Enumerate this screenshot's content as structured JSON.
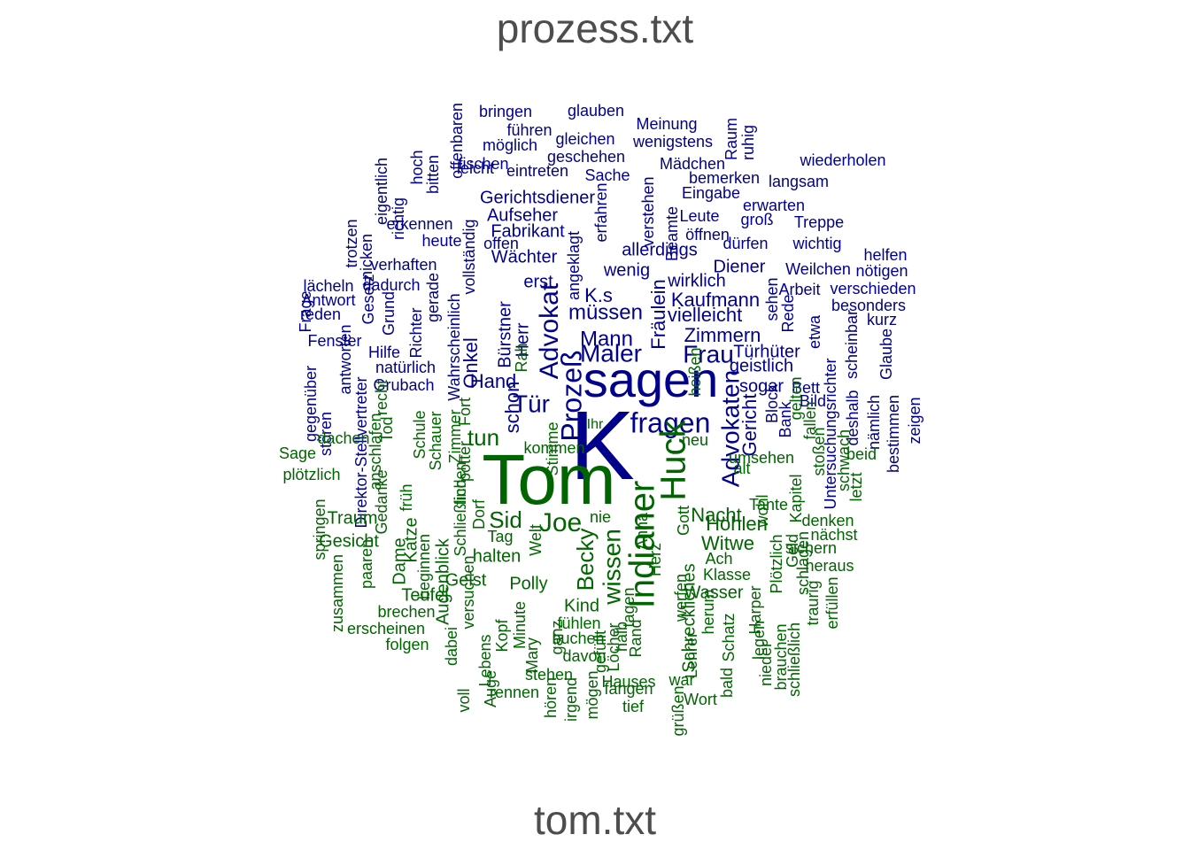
{
  "chart_data": {
    "type": "comparison-wordcloud",
    "groups": [
      {
        "name": "prozess.txt",
        "color": "#00008B"
      },
      {
        "name": "tom.txt",
        "color": "#006400"
      }
    ],
    "words": [
      [
        "K",
        0,
        100
      ],
      [
        "sagen",
        0,
        52
      ],
      [
        "fragen",
        0,
        30
      ],
      [
        "Prozeß",
        0,
        30
      ],
      [
        "Advokat",
        0,
        28
      ],
      [
        "Advokaten",
        0,
        26
      ],
      [
        "Maler",
        0,
        28
      ],
      [
        "müssen",
        0,
        24
      ],
      [
        "Frau",
        0,
        26
      ],
      [
        "Mann",
        0,
        24
      ],
      [
        "Tür",
        0,
        26
      ],
      [
        "K.s",
        0,
        22
      ],
      [
        "Kaufmann",
        0,
        22
      ],
      [
        "vielleicht",
        0,
        22
      ],
      [
        "Zimmern",
        0,
        20
      ],
      [
        "Türhüter",
        0,
        20
      ],
      [
        "Onkel",
        0,
        20
      ],
      [
        "Gericht",
        0,
        22
      ],
      [
        "Hand",
        0,
        20
      ],
      [
        "schon",
        0,
        22
      ],
      [
        "Herr",
        0,
        18
      ],
      [
        "Bürstner",
        0,
        18
      ],
      [
        "erst",
        0,
        18
      ],
      [
        "Fräulein",
        0,
        20
      ],
      [
        "Beamte",
        0,
        18
      ],
      [
        "allerdings",
        0,
        20
      ],
      [
        "Diener",
        0,
        18
      ],
      [
        "wenig",
        0,
        18
      ],
      [
        "wirklich",
        0,
        18
      ],
      [
        "Wächter",
        0,
        20
      ],
      [
        "Fabrikant",
        0,
        18
      ],
      [
        "Aufseher",
        0,
        18
      ],
      [
        "Gerichtsdiener",
        0,
        18
      ],
      [
        "geistlich",
        0,
        18
      ],
      [
        "sogar",
        0,
        18
      ],
      [
        "Bett",
        0,
        16
      ],
      [
        "Bild",
        0,
        16
      ],
      [
        "Block",
        0,
        16
      ],
      [
        "Bank",
        0,
        16
      ],
      [
        "natürlich",
        0,
        18
      ],
      [
        "Grubach",
        0,
        18
      ],
      [
        "Richter",
        0,
        16
      ],
      [
        "Hilfe",
        0,
        16
      ],
      [
        "Fenster",
        0,
        16
      ],
      [
        "Antwort",
        0,
        16
      ],
      [
        "Frage",
        0,
        16
      ],
      [
        "reden",
        0,
        16
      ],
      [
        "lächeln",
        0,
        16
      ],
      [
        "Grund",
        0,
        16
      ],
      [
        "Gesetz",
        0,
        16
      ],
      [
        "dadurch",
        0,
        16
      ],
      [
        "verhaften",
        0,
        16
      ],
      [
        "erkennen",
        0,
        16
      ],
      [
        "heute",
        0,
        16
      ],
      [
        "offen",
        0,
        16
      ],
      [
        "trotzen",
        0,
        16
      ],
      [
        "nicken",
        0,
        16
      ],
      [
        "eigentlich",
        0,
        16
      ],
      [
        "richtig",
        0,
        16
      ],
      [
        "hoch",
        0,
        16
      ],
      [
        "bitten",
        0,
        16
      ],
      [
        "offenbaren",
        0,
        16
      ],
      [
        "leicht",
        0,
        16
      ],
      [
        "eintreten",
        0,
        16
      ],
      [
        "fischen",
        0,
        16
      ],
      [
        "möglich",
        0,
        16
      ],
      [
        "gleichen",
        0,
        16
      ],
      [
        "geschehen",
        0,
        16
      ],
      [
        "führen",
        0,
        16
      ],
      [
        "bringen",
        0,
        16
      ],
      [
        "glauben",
        0,
        16
      ],
      [
        "Meinung",
        0,
        16
      ],
      [
        "wenigstens",
        0,
        16
      ],
      [
        "Mädchen",
        0,
        16
      ],
      [
        "Sache",
        0,
        16
      ],
      [
        "bemerken",
        0,
        16
      ],
      [
        "Eingabe",
        0,
        16
      ],
      [
        "Raum",
        0,
        16
      ],
      [
        "ruhig",
        0,
        16
      ],
      [
        "wiederholen",
        0,
        16
      ],
      [
        "langsam",
        0,
        16
      ],
      [
        "erwarten",
        0,
        16
      ],
      [
        "groß",
        0,
        16
      ],
      [
        "Treppe",
        0,
        16
      ],
      [
        "Leute",
        0,
        16
      ],
      [
        "öffnen",
        0,
        16
      ],
      [
        "dürfen",
        0,
        16
      ],
      [
        "wichtig",
        0,
        16
      ],
      [
        "helfen",
        0,
        16
      ],
      [
        "nötigen",
        0,
        16
      ],
      [
        "Weilchen",
        0,
        16
      ],
      [
        "Arbeit",
        0,
        16
      ],
      [
        "verschieden",
        0,
        16
      ],
      [
        "besonders",
        0,
        16
      ],
      [
        "kurz",
        0,
        16
      ],
      [
        "Rede",
        0,
        16
      ],
      [
        "etwa",
        0,
        16
      ],
      [
        "sehen",
        0,
        16
      ],
      [
        "erfahren",
        0,
        16
      ],
      [
        "verstehen",
        0,
        16
      ],
      [
        "Untersuchungsrichter",
        0,
        16
      ],
      [
        "scheinbar",
        0,
        16
      ],
      [
        "Glaube",
        0,
        16
      ],
      [
        "deshalb",
        0,
        16
      ],
      [
        "nämlich",
        0,
        16
      ],
      [
        "bestimmen",
        0,
        16
      ],
      [
        "zeigen",
        0,
        16
      ],
      [
        "Wahrscheinlich",
        0,
        16
      ],
      [
        "vollständig",
        0,
        16
      ],
      [
        "gegenüber",
        0,
        16
      ],
      [
        "antworten",
        0,
        16
      ],
      [
        "stören",
        0,
        16
      ],
      [
        "Direktor-Stellvertreter",
        0,
        16
      ],
      [
        "angeklagt",
        0,
        16
      ],
      [
        "gerade",
        0,
        16
      ],
      [
        "Tom",
        1,
        100
      ],
      [
        "Huck",
        1,
        42
      ],
      [
        "Indianer",
        1,
        38
      ],
      [
        "Joe",
        1,
        30
      ],
      [
        "Sid",
        1,
        26
      ],
      [
        "Becky",
        1,
        26
      ],
      [
        "wissen",
        1,
        28
      ],
      [
        "tun",
        1,
        24
      ],
      [
        "Nacht",
        1,
        20
      ],
      [
        "Höhlen",
        1,
        20
      ],
      [
        "Witwe",
        1,
        20
      ],
      [
        "Teufel",
        1,
        18
      ],
      [
        "Geist",
        1,
        18
      ],
      [
        "Polly",
        1,
        18
      ],
      [
        "Kind",
        1,
        18
      ],
      [
        "Wasser",
        1,
        18
      ],
      [
        "Schreckliches",
        1,
        18
      ],
      [
        "Lehrer",
        1,
        16
      ],
      [
        "halten",
        1,
        18
      ],
      [
        "Augenblick",
        1,
        18
      ],
      [
        "Katze",
        1,
        16
      ],
      [
        "Dame",
        1,
        16
      ],
      [
        "Traum",
        1,
        16
      ],
      [
        "Gesicht",
        1,
        16
      ],
      [
        "Sage",
        1,
        16
      ],
      [
        "plötzlich",
        1,
        16
      ],
      [
        "dachen",
        1,
        16
      ],
      [
        "anschlafen",
        1,
        16
      ],
      [
        "Gedanke",
        1,
        16
      ],
      [
        "zusammen",
        1,
        16
      ],
      [
        "paaren",
        1,
        16
      ],
      [
        "brechen",
        1,
        16
      ],
      [
        "erscheinen",
        1,
        16
      ],
      [
        "folgen",
        1,
        16
      ],
      [
        "springen",
        1,
        16
      ],
      [
        "Wort",
        1,
        16
      ],
      [
        "Hauses",
        1,
        16
      ],
      [
        "Schatz",
        1,
        16
      ],
      [
        "Harper",
        1,
        16
      ],
      [
        "Plötzlich",
        1,
        16
      ],
      [
        "Geld",
        1,
        16
      ],
      [
        "schlagen",
        1,
        16
      ],
      [
        "traurig",
        1,
        16
      ],
      [
        "erfüllen",
        1,
        16
      ],
      [
        "heraus",
        1,
        16
      ],
      [
        "sichern",
        1,
        16
      ],
      [
        "nächst",
        1,
        16
      ],
      [
        "denken",
        1,
        16
      ],
      [
        "letzt",
        1,
        16
      ],
      [
        "beid",
        1,
        16
      ],
      [
        "schwach",
        1,
        16
      ],
      [
        "stoßen",
        1,
        16
      ],
      [
        "fallen",
        1,
        16
      ],
      [
        "Kapitel",
        1,
        16
      ],
      [
        "Tante",
        1,
        16
      ],
      [
        "Anna",
        1,
        16
      ],
      [
        "Herz",
        1,
        16
      ],
      [
        "Gott",
        1,
        16
      ],
      [
        "Klasse",
        1,
        16
      ],
      [
        "Ach",
        1,
        16
      ],
      [
        "war",
        1,
        16
      ],
      [
        "werfen",
        1,
        16
      ],
      [
        "tief",
        1,
        16
      ],
      [
        "fangen",
        1,
        16
      ],
      [
        "irgend",
        1,
        16
      ],
      [
        "mögen",
        1,
        16
      ],
      [
        "buchen",
        1,
        16
      ],
      [
        "fühlen",
        1,
        16
      ],
      [
        "davon",
        1,
        16
      ],
      [
        "rennen",
        1,
        16
      ],
      [
        "hören",
        1,
        16
      ],
      [
        "Kopf",
        1,
        16
      ],
      [
        "Minute",
        1,
        16
      ],
      [
        "Mary",
        1,
        16
      ],
      [
        "Lebens",
        1,
        16
      ],
      [
        "Auge",
        1,
        16
      ],
      [
        "dabei",
        1,
        16
      ],
      [
        "versuchen",
        1,
        16
      ],
      [
        "voll",
        1,
        16
      ],
      [
        "Schließlich",
        1,
        16
      ],
      [
        "finden",
        1,
        16
      ],
      [
        "Dorf",
        1,
        16
      ],
      [
        "Tag",
        1,
        16
      ],
      [
        "nie",
        1,
        16
      ],
      [
        "Welt",
        1,
        16
      ],
      [
        "ganz",
        1,
        16
      ],
      [
        "Stimme",
        1,
        16
      ],
      [
        "kommen",
        1,
        16
      ],
      [
        "alt",
        1,
        16
      ],
      [
        "neu",
        1,
        16
      ],
      [
        "Fort",
        1,
        16
      ],
      [
        "früh",
        1,
        16
      ],
      [
        "Schule",
        1,
        16
      ],
      [
        "Schauer",
        1,
        16
      ],
      [
        "Zimmer",
        1,
        16
      ],
      [
        "beginnen",
        1,
        16
      ],
      [
        "recht",
        1,
        16
      ],
      [
        "Rand",
        1,
        16
      ],
      [
        "halb",
        1,
        16
      ],
      [
        "herum",
        1,
        16
      ],
      [
        "bald",
        1,
        16
      ],
      [
        "legen",
        1,
        16
      ],
      [
        "nieder",
        1,
        16
      ],
      [
        "brauchen",
        1,
        16
      ],
      [
        "schließlich",
        1,
        16
      ],
      [
        "heißen",
        1,
        16
      ],
      [
        "Löcher",
        1,
        16
      ],
      [
        "wohl",
        1,
        16
      ],
      [
        "Tod",
        1,
        16
      ],
      [
        "potter",
        1,
        16
      ],
      [
        "umsehen",
        1,
        16
      ],
      [
        "grüßen",
        1,
        16
      ],
      [
        "tagen",
        1,
        16
      ],
      [
        "gefüllt",
        1,
        16
      ],
      [
        "gelten",
        1,
        16
      ],
      [
        "Rah",
        1,
        16
      ],
      [
        "stehen",
        1,
        16
      ],
      [
        "Ihr",
        1,
        16
      ]
    ]
  }
}
